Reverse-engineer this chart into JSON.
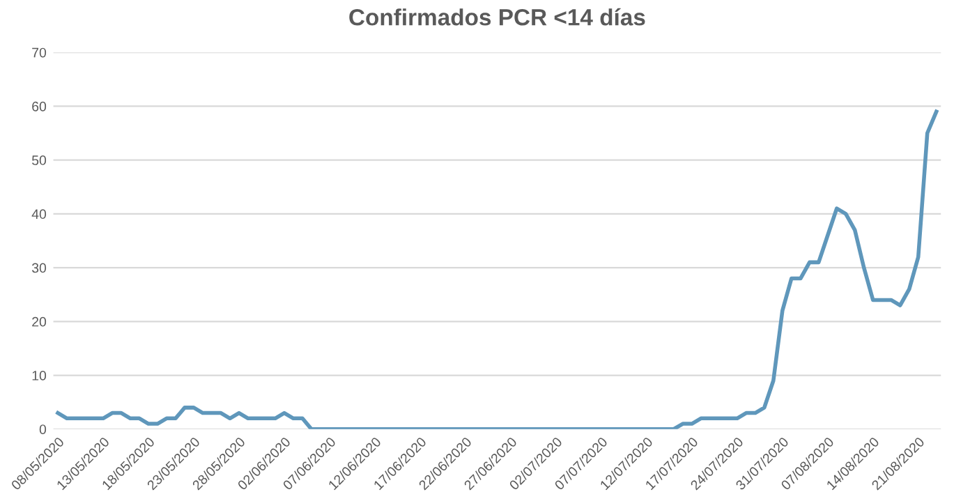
{
  "chart_data": {
    "type": "line",
    "title": "Confirmados PCR <14 días",
    "categories": [
      "08/05/2020",
      null,
      null,
      null,
      null,
      "13/05/2020",
      null,
      null,
      null,
      null,
      "18/05/2020",
      null,
      null,
      null,
      null,
      "23/05/2020",
      null,
      null,
      null,
      null,
      "28/05/2020",
      null,
      null,
      null,
      null,
      "02/06/2020",
      null,
      null,
      null,
      null,
      "07/06/2020",
      null,
      null,
      null,
      null,
      "12/06/2020",
      null,
      null,
      null,
      null,
      "17/06/2020",
      null,
      null,
      null,
      null,
      "22/06/2020",
      null,
      null,
      null,
      null,
      "27/06/2020",
      null,
      null,
      null,
      null,
      "02/07/2020",
      null,
      null,
      null,
      null,
      "07/07/2020",
      null,
      null,
      null,
      null,
      "12/07/2020",
      null,
      null,
      null,
      null,
      "17/07/2020",
      null,
      null,
      null,
      null,
      "24/07/2020",
      null,
      null,
      null,
      null,
      "31/07/2020",
      null,
      null,
      null,
      null,
      "07/08/2020",
      null,
      null,
      null,
      null,
      "14/08/2020",
      null,
      null,
      null,
      null,
      "21/08/2020",
      null,
      null
    ],
    "series": [
      {
        "color": "#5f97bb",
        "values": [
          3,
          2,
          2,
          2,
          2,
          2,
          3,
          3,
          2,
          2,
          1,
          1,
          2,
          2,
          4,
          4,
          3,
          3,
          3,
          2,
          3,
          2,
          2,
          2,
          2,
          3,
          2,
          2,
          0,
          0,
          0,
          0,
          0,
          0,
          0,
          0,
          0,
          0,
          0,
          0,
          0,
          0,
          0,
          0,
          0,
          0,
          0,
          0,
          0,
          0,
          0,
          0,
          0,
          0,
          0,
          0,
          0,
          0,
          0,
          0,
          0,
          0,
          0,
          0,
          0,
          0,
          0,
          0,
          0,
          1,
          1,
          2,
          2,
          2,
          2,
          2,
          3,
          3,
          4,
          9,
          22,
          28,
          28,
          31,
          31,
          36,
          41,
          40,
          37,
          30,
          24,
          24,
          24,
          23,
          26,
          32,
          55,
          59
        ]
      }
    ],
    "ylim": [
      0,
      70
    ],
    "yticks": [
      0,
      10,
      20,
      30,
      40,
      50,
      60,
      70
    ],
    "grid": "y",
    "legend": false,
    "marker": "none",
    "line_style": "solid"
  }
}
